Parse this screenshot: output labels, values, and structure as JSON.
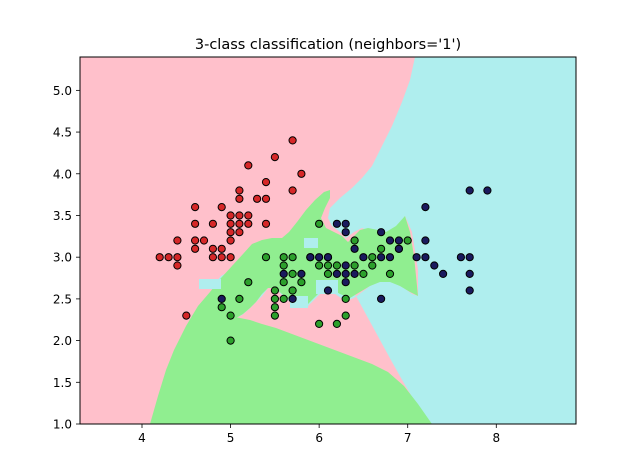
{
  "chart_data": {
    "type": "scatter",
    "title": "3-class classification (neighbors='1')",
    "xlabel": "",
    "ylabel": "",
    "xlim": [
      3.3,
      8.9
    ],
    "ylim": [
      1.0,
      5.4
    ],
    "x_ticks": [
      4,
      5,
      6,
      7,
      8
    ],
    "y_ticks": [
      1.0,
      1.5,
      2.0,
      2.5,
      3.0,
      3.5,
      4.0,
      4.5,
      5.0
    ],
    "x_tick_labels": [
      "4",
      "5",
      "6",
      "7",
      "8"
    ],
    "y_tick_labels": [
      "1.0",
      "1.5",
      "2.0",
      "2.5",
      "3.0",
      "3.5",
      "4.0",
      "4.5",
      "5.0"
    ],
    "grid": false,
    "legend": "none",
    "decision_region_colors": [
      "#ffc0cb",
      "#90ee90",
      "#afeeee"
    ],
    "series": [
      {
        "color": "#d62728",
        "points": [
          [
            4.2,
            3.0
          ],
          [
            4.3,
            3.0
          ],
          [
            4.4,
            2.9
          ],
          [
            4.4,
            3.0
          ],
          [
            4.4,
            3.2
          ],
          [
            4.5,
            2.3
          ],
          [
            4.6,
            3.1
          ],
          [
            4.6,
            3.2
          ],
          [
            4.6,
            3.4
          ],
          [
            4.6,
            3.6
          ],
          [
            4.7,
            3.2
          ],
          [
            4.8,
            3.0
          ],
          [
            4.8,
            3.1
          ],
          [
            4.8,
            3.4
          ],
          [
            4.9,
            3.0
          ],
          [
            4.9,
            3.1
          ],
          [
            4.9,
            3.6
          ],
          [
            5.0,
            3.0
          ],
          [
            5.0,
            3.2
          ],
          [
            5.0,
            3.3
          ],
          [
            5.0,
            3.4
          ],
          [
            5.0,
            3.5
          ],
          [
            5.1,
            3.3
          ],
          [
            5.1,
            3.4
          ],
          [
            5.1,
            3.5
          ],
          [
            5.1,
            3.7
          ],
          [
            5.1,
            3.8
          ],
          [
            5.2,
            3.4
          ],
          [
            5.2,
            3.5
          ],
          [
            5.2,
            4.1
          ],
          [
            5.3,
            3.7
          ],
          [
            5.4,
            3.4
          ],
          [
            5.4,
            3.7
          ],
          [
            5.4,
            3.9
          ],
          [
            5.5,
            4.2
          ],
          [
            5.7,
            3.8
          ],
          [
            5.7,
            4.4
          ],
          [
            5.8,
            4.0
          ]
        ]
      },
      {
        "color": "#2ca02c",
        "points": [
          [
            4.9,
            2.4
          ],
          [
            5.0,
            2.0
          ],
          [
            5.0,
            2.3
          ],
          [
            5.1,
            2.5
          ],
          [
            5.2,
            2.7
          ],
          [
            5.4,
            3.0
          ],
          [
            5.5,
            2.3
          ],
          [
            5.5,
            2.4
          ],
          [
            5.5,
            2.5
          ],
          [
            5.5,
            2.6
          ],
          [
            5.6,
            2.5
          ],
          [
            5.6,
            2.7
          ],
          [
            5.6,
            2.9
          ],
          [
            5.6,
            3.0
          ],
          [
            5.7,
            2.6
          ],
          [
            5.7,
            2.8
          ],
          [
            5.7,
            3.0
          ],
          [
            5.8,
            2.7
          ],
          [
            5.9,
            3.0
          ],
          [
            6.0,
            2.2
          ],
          [
            6.0,
            2.9
          ],
          [
            6.0,
            3.4
          ],
          [
            6.1,
            2.8
          ],
          [
            6.1,
            2.9
          ],
          [
            6.1,
            3.0
          ],
          [
            6.2,
            2.2
          ],
          [
            6.2,
            2.9
          ],
          [
            6.3,
            2.3
          ],
          [
            6.3,
            2.5
          ],
          [
            6.4,
            2.9
          ],
          [
            6.4,
            3.2
          ],
          [
            6.5,
            2.8
          ],
          [
            6.6,
            2.9
          ],
          [
            6.6,
            3.0
          ],
          [
            6.7,
            3.1
          ],
          [
            6.8,
            2.8
          ],
          [
            6.9,
            3.1
          ],
          [
            7.0,
            3.2
          ]
        ]
      },
      {
        "color": "#1a1a5e",
        "points": [
          [
            4.9,
            2.5
          ],
          [
            5.6,
            2.8
          ],
          [
            5.7,
            2.5
          ],
          [
            5.8,
            2.8
          ],
          [
            5.9,
            3.0
          ],
          [
            6.0,
            3.0
          ],
          [
            6.1,
            2.6
          ],
          [
            6.1,
            3.0
          ],
          [
            6.2,
            2.8
          ],
          [
            6.2,
            3.4
          ],
          [
            6.3,
            2.7
          ],
          [
            6.3,
            2.8
          ],
          [
            6.3,
            2.9
          ],
          [
            6.3,
            3.3
          ],
          [
            6.3,
            3.4
          ],
          [
            6.4,
            2.8
          ],
          [
            6.4,
            3.1
          ],
          [
            6.5,
            3.0
          ],
          [
            6.7,
            2.5
          ],
          [
            6.7,
            3.0
          ],
          [
            6.7,
            3.3
          ],
          [
            6.8,
            3.0
          ],
          [
            6.8,
            3.2
          ],
          [
            6.9,
            3.1
          ],
          [
            6.9,
            3.2
          ],
          [
            7.1,
            3.0
          ],
          [
            7.2,
            3.0
          ],
          [
            7.2,
            3.2
          ],
          [
            7.2,
            3.6
          ],
          [
            7.3,
            2.9
          ],
          [
            7.4,
            2.8
          ],
          [
            7.6,
            3.0
          ],
          [
            7.7,
            2.6
          ],
          [
            7.7,
            2.8
          ],
          [
            7.7,
            3.0
          ],
          [
            7.7,
            3.8
          ],
          [
            7.9,
            3.8
          ]
        ]
      }
    ]
  }
}
